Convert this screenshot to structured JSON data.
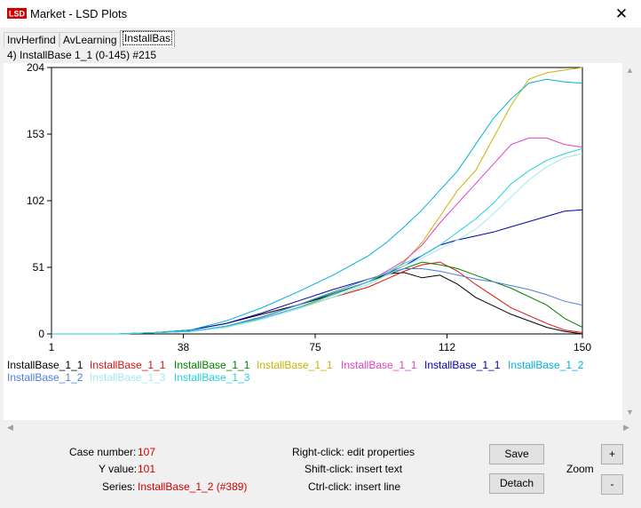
{
  "window": {
    "title": "Market - LSD Plots",
    "close": "✕",
    "app_icon_text": "LSD"
  },
  "tabs": [
    {
      "label": "InvHerfind",
      "active": false
    },
    {
      "label": "AvLearning",
      "active": false
    },
    {
      "label": "InstallBas",
      "active": true
    }
  ],
  "panel": {
    "title": "4) InstallBase 1_1 (0-145) #215"
  },
  "chart_data": {
    "type": "line",
    "title": "",
    "xlabel": "",
    "ylabel": "",
    "xlim": [
      1,
      150
    ],
    "ylim": [
      0,
      204
    ],
    "x_ticks": [
      "1",
      "38",
      "75",
      "112",
      "150"
    ],
    "y_ticks": [
      "0",
      "51",
      "102",
      "153",
      "204"
    ],
    "grid": false,
    "legend_position": "bottom",
    "series": [
      {
        "name": "InstallBase_1_1",
        "color": "#000000",
        "x": [
          1,
          20,
          30,
          40,
          50,
          60,
          70,
          80,
          90,
          95,
          100,
          105,
          110,
          115,
          120,
          130,
          140,
          145,
          150
        ],
        "y": [
          0,
          0,
          1,
          3,
          8,
          15,
          22,
          30,
          40,
          46,
          47,
          43,
          45,
          38,
          28,
          15,
          5,
          2,
          0
        ]
      },
      {
        "name": "InstallBase_1_1",
        "color": "#e01010",
        "x": [
          1,
          20,
          30,
          40,
          50,
          60,
          70,
          80,
          90,
          95,
          100,
          105,
          110,
          115,
          120,
          130,
          140,
          145,
          150
        ],
        "y": [
          0,
          0,
          1,
          2,
          5,
          12,
          20,
          28,
          36,
          42,
          48,
          53,
          55,
          48,
          38,
          20,
          8,
          3,
          1
        ]
      },
      {
        "name": "InstallBase_1_1",
        "color": "#008000",
        "x": [
          1,
          20,
          30,
          40,
          50,
          60,
          70,
          80,
          90,
          95,
          100,
          105,
          110,
          115,
          120,
          130,
          140,
          145,
          150
        ],
        "y": [
          0,
          0,
          1,
          2,
          6,
          13,
          22,
          31,
          40,
          45,
          50,
          55,
          53,
          50,
          45,
          35,
          22,
          12,
          5
        ]
      },
      {
        "name": "InstallBase_1_1",
        "color": "#c8b400",
        "x": [
          1,
          20,
          30,
          40,
          50,
          60,
          70,
          80,
          90,
          95,
          100,
          105,
          110,
          115,
          120,
          125,
          130,
          135,
          140,
          145,
          150
        ],
        "y": [
          0,
          0,
          1,
          2,
          5,
          12,
          20,
          28,
          38,
          45,
          55,
          70,
          90,
          110,
          125,
          150,
          175,
          195,
          200,
          202,
          204
        ]
      },
      {
        "name": "InstallBase_1_1",
        "color": "#e040c0",
        "x": [
          1,
          20,
          30,
          40,
          50,
          60,
          70,
          80,
          90,
          95,
          100,
          105,
          110,
          115,
          120,
          125,
          130,
          135,
          140,
          145,
          150
        ],
        "y": [
          0,
          0,
          1,
          2,
          6,
          12,
          20,
          30,
          40,
          48,
          56,
          68,
          85,
          100,
          115,
          130,
          145,
          150,
          150,
          145,
          143
        ]
      },
      {
        "name": "InstallBase_1_1",
        "color": "#0000b0",
        "x": [
          1,
          20,
          30,
          40,
          50,
          60,
          70,
          80,
          90,
          95,
          100,
          105,
          110,
          115,
          120,
          125,
          130,
          135,
          140,
          145,
          150
        ],
        "y": [
          0,
          0,
          1,
          3,
          8,
          16,
          25,
          34,
          42,
          46,
          52,
          60,
          68,
          72,
          75,
          78,
          82,
          86,
          90,
          94,
          95
        ]
      },
      {
        "name": "InstallBase_1_2",
        "color": "#00b0e0",
        "x": [
          1,
          20,
          30,
          40,
          50,
          60,
          70,
          80,
          90,
          95,
          100,
          105,
          110,
          115,
          120,
          125,
          130,
          135,
          140,
          145,
          150
        ],
        "y": [
          0,
          0,
          1,
          3,
          10,
          20,
          32,
          45,
          60,
          70,
          82,
          95,
          110,
          125,
          145,
          165,
          180,
          192,
          195,
          193,
          192
        ]
      },
      {
        "name": "InstallBase_1_2",
        "color": "#4a7fe0",
        "x": [
          1,
          20,
          30,
          40,
          50,
          60,
          70,
          80,
          90,
          95,
          100,
          105,
          110,
          115,
          120,
          125,
          130,
          135,
          140,
          145,
          150
        ],
        "y": [
          0,
          0,
          1,
          2,
          6,
          13,
          22,
          32,
          42,
          46,
          50,
          50,
          48,
          45,
          42,
          40,
          37,
          34,
          30,
          25,
          22
        ]
      },
      {
        "name": "InstallBase_1_3",
        "color": "#a0e8f4",
        "x": [
          1,
          20,
          30,
          40,
          50,
          60,
          70,
          80,
          90,
          95,
          100,
          105,
          110,
          115,
          120,
          125,
          130,
          135,
          140,
          145,
          150
        ],
        "y": [
          0,
          0,
          1,
          2,
          5,
          11,
          19,
          28,
          38,
          45,
          52,
          58,
          65,
          72,
          80,
          92,
          105,
          118,
          128,
          135,
          138
        ]
      },
      {
        "name": "InstallBase_1_3",
        "color": "#20d0e0",
        "x": [
          1,
          20,
          30,
          40,
          50,
          60,
          70,
          80,
          90,
          95,
          100,
          105,
          110,
          115,
          120,
          125,
          130,
          135,
          140,
          145,
          150
        ],
        "y": [
          0,
          0,
          1,
          2,
          6,
          12,
          20,
          30,
          40,
          47,
          54,
          60,
          68,
          78,
          88,
          100,
          115,
          125,
          133,
          138,
          142
        ]
      }
    ]
  },
  "info": {
    "case_label": "Case number:",
    "case_value": "107",
    "y_label": "Y value:",
    "y_value": "101",
    "series_label": "Series:",
    "series_value": "InstallBase_1_2 (#389)"
  },
  "hints": {
    "right": "Right-click: edit properties",
    "shift": "Shift-click: insert text",
    "ctrl": "Ctrl-click: insert line"
  },
  "buttons": {
    "save": "Save",
    "detach": "Detach",
    "zoom_label": "Zoom",
    "zoom_in": "+",
    "zoom_out": "-"
  }
}
